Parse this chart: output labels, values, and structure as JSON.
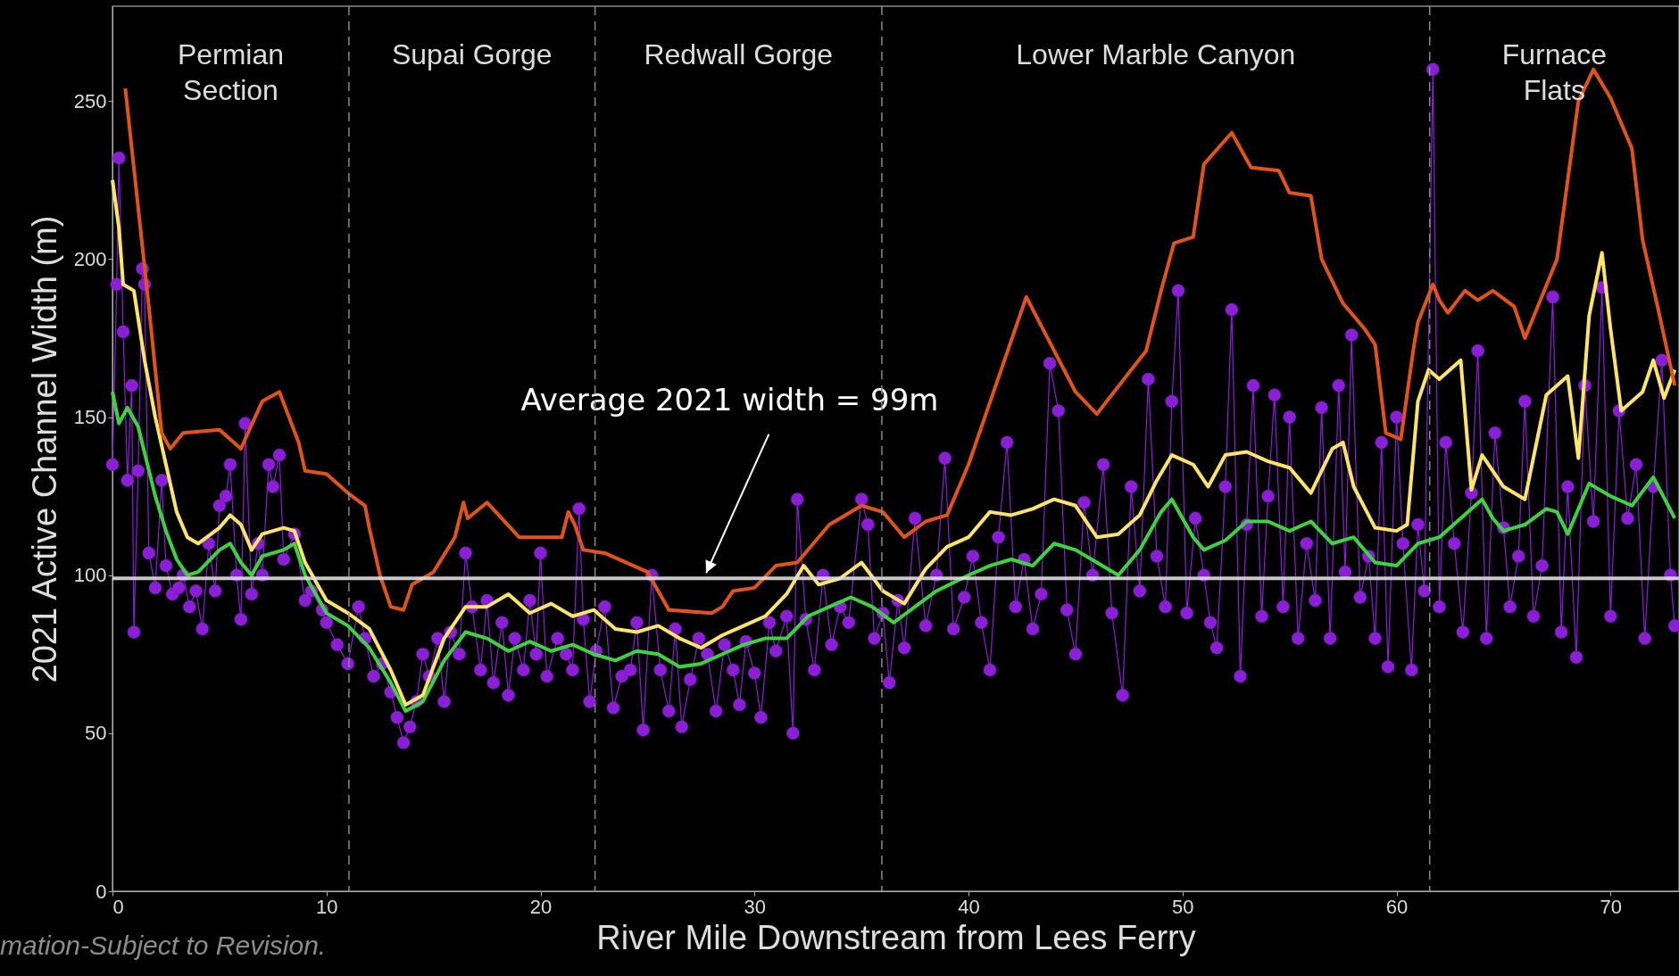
{
  "chart_data": {
    "type": "line",
    "xlabel": "River Mile Downstream from Lees Ferry",
    "ylabel": "2021 Active Channel Width (m)",
    "xlim": [
      0,
      73.2
    ],
    "ylim": [
      0,
      280
    ],
    "xticks": [
      0,
      10,
      20,
      30,
      40,
      50,
      60,
      70
    ],
    "yticks": [
      0,
      50,
      100,
      150,
      200,
      250
    ],
    "grid": false,
    "series": [
      {
        "marker": "circle",
        "color": "#8a1fd6",
        "x": [
          0,
          0.2,
          0.3,
          0.5,
          0.7,
          0.9,
          1.0,
          1.2,
          1.4,
          1.5,
          1.7,
          2.0,
          2.3,
          2.5,
          2.8,
          3.1,
          3.3,
          3.6,
          3.9,
          4.2,
          4.5,
          4.8,
          5.0,
          5.3,
          5.5,
          5.8,
          6.0,
          6.2,
          6.5,
          6.8,
          7.0,
          7.3,
          7.5,
          7.8,
          8.0,
          8.5,
          9.0,
          9.3,
          9.8,
          10.0,
          10.5,
          11.0,
          11.5,
          11.8,
          12.2,
          12.6,
          13.0,
          13.3,
          13.6,
          13.9,
          14.2,
          14.5,
          14.8,
          15.2,
          15.5,
          15.8,
          16.2,
          16.5,
          16.8,
          17.2,
          17.5,
          17.8,
          18.2,
          18.5,
          18.8,
          19.2,
          19.5,
          19.8,
          20.0,
          20.3,
          20.8,
          21.2,
          21.5,
          21.8,
          22.0,
          22.3,
          22.6,
          23.0,
          23.4,
          23.8,
          24.2,
          24.5,
          24.8,
          25.2,
          25.6,
          26.0,
          26.3,
          26.6,
          27.0,
          27.4,
          27.8,
          28.2,
          28.6,
          29.0,
          29.3,
          29.6,
          30.0,
          30.3,
          30.7,
          31.0,
          31.5,
          31.8,
          32.0,
          32.4,
          32.8,
          33.2,
          33.6,
          34.0,
          34.4,
          35.0,
          35.3,
          35.6,
          36.0,
          36.3,
          36.7,
          37.0,
          37.5,
          38.0,
          38.5,
          38.9,
          39.3,
          39.8,
          40.2,
          40.6,
          41.0,
          41.4,
          41.8,
          42.2,
          42.6,
          43.0,
          43.4,
          43.8,
          44.2,
          44.6,
          45.0,
          45.4,
          45.8,
          46.3,
          46.7,
          47.2,
          47.6,
          48.0,
          48.4,
          48.8,
          49.2,
          49.5,
          49.8,
          50.2,
          50.6,
          51.0,
          51.3,
          51.6,
          52.0,
          52.3,
          52.7,
          53.0,
          53.3,
          53.7,
          54.0,
          54.3,
          54.7,
          55.0,
          55.4,
          55.8,
          56.2,
          56.5,
          56.9,
          57.3,
          57.6,
          57.9,
          58.3,
          58.7,
          59.0,
          59.3,
          59.6,
          60.0,
          60.3,
          60.7,
          61.0,
          61.3,
          61.7,
          62.0,
          62.3,
          62.7,
          63.1,
          63.5,
          63.8,
          64.2,
          64.6,
          65.0,
          65.3,
          65.7,
          66.0,
          66.4,
          66.8,
          67.3,
          67.7,
          68.0,
          68.4,
          68.8,
          69.2,
          69.6,
          70.0,
          70.4,
          70.8,
          71.2,
          71.6,
          72.0,
          72.4,
          72.8,
          73.0
        ],
        "values": [
          135,
          192,
          232,
          177,
          130,
          160,
          82,
          133,
          197,
          192,
          107,
          96,
          130,
          103,
          94,
          96,
          100,
          90,
          95,
          83,
          110,
          95,
          122,
          125,
          135,
          100,
          86,
          148,
          94,
          110,
          100,
          135,
          128,
          138,
          105,
          113,
          92,
          95,
          89,
          85,
          78,
          72,
          90,
          80,
          68,
          72,
          63,
          55,
          47,
          52,
          60,
          75,
          68,
          80,
          60,
          82,
          75,
          107,
          90,
          70,
          92,
          66,
          85,
          62,
          80,
          70,
          92,
          75,
          107,
          68,
          80,
          75,
          70,
          121,
          86,
          60,
          76,
          90,
          58,
          68,
          70,
          85,
          51,
          100,
          70,
          57,
          83,
          52,
          67,
          80,
          75,
          57,
          78,
          70,
          59,
          79,
          69,
          55,
          85,
          76,
          87,
          50,
          124,
          86,
          70,
          100,
          78,
          90,
          85,
          124,
          116,
          80,
          88,
          66,
          92,
          77,
          118,
          84,
          100,
          137,
          83,
          93,
          106,
          85,
          70,
          112,
          142,
          90,
          105,
          83,
          94,
          167,
          152,
          89,
          75,
          123,
          100,
          135,
          88,
          62,
          128,
          95,
          162,
          106,
          90,
          155,
          190,
          88,
          118,
          100,
          85,
          77,
          128,
          184,
          68,
          116,
          160,
          87,
          125,
          157,
          90,
          150,
          80,
          110,
          92,
          153,
          80,
          160,
          101,
          176,
          93,
          106,
          80,
          142,
          71,
          150,
          110,
          70,
          116,
          95,
          260,
          90,
          142,
          110,
          82,
          126,
          171,
          80,
          145,
          115,
          90,
          106,
          155,
          87,
          103,
          188,
          82,
          128,
          74,
          160,
          117,
          191,
          87,
          152,
          118,
          135,
          80,
          128,
          168,
          100,
          84
        ]
      },
      {
        "color": "#3fd23f",
        "x": [
          0,
          0.3,
          0.7,
          1.2,
          2,
          2.5,
          3,
          3.5,
          4,
          5,
          5.5,
          6,
          6.5,
          7,
          8,
          8.5,
          9,
          10,
          11,
          12,
          13,
          13.7,
          14.5,
          15.5,
          16.5,
          17.5,
          18.5,
          19.5,
          20.5,
          21.5,
          22.5,
          23.5,
          24.5,
          25.5,
          26.5,
          27.5,
          28.5,
          29.5,
          30.5,
          31.5,
          32.5,
          33.5,
          34.5,
          35.5,
          36.5,
          37.5,
          38.5,
          40,
          41,
          42,
          43,
          44,
          45,
          46,
          47,
          48,
          49,
          49.5,
          50.5,
          51,
          52,
          53,
          54,
          55,
          56,
          57,
          58,
          59,
          60,
          61,
          62,
          63,
          64,
          64.5,
          65,
          66,
          67,
          67.5,
          68,
          69,
          70,
          71,
          72,
          73
        ],
        "values": [
          158,
          148,
          153,
          147,
          125,
          114,
          105,
          100,
          101,
          108,
          110,
          104,
          100,
          106,
          108,
          110,
          100,
          88,
          84,
          77,
          66,
          57,
          60,
          73,
          82,
          80,
          76,
          79,
          76,
          78,
          75,
          73,
          76,
          75,
          71,
          72,
          75,
          78,
          80,
          80,
          87,
          90,
          93,
          90,
          85,
          90,
          95,
          100,
          103,
          105,
          103,
          110,
          108,
          104,
          100,
          108,
          120,
          124,
          112,
          108,
          111,
          117,
          117,
          114,
          117,
          110,
          112,
          104,
          103,
          110,
          112,
          118,
          124,
          118,
          114,
          116,
          121,
          120,
          113,
          129,
          125,
          122,
          131,
          118
        ]
      },
      {
        "color": "#ffe46a",
        "x": [
          0,
          0.3,
          0.5,
          1,
          1.5,
          2,
          2.5,
          3,
          3.5,
          4,
          5,
          5.5,
          6,
          6.5,
          7,
          8,
          8.5,
          9,
          10,
          11,
          12,
          13,
          13.7,
          14.5,
          15.5,
          16.5,
          17.5,
          18.5,
          19.5,
          20.5,
          21.5,
          22.5,
          23.5,
          24.5,
          25.5,
          26.5,
          27.5,
          28.5,
          29.5,
          30.5,
          31.5,
          32.3,
          33,
          34,
          35,
          36,
          37,
          38,
          39,
          40,
          41,
          42,
          43,
          44,
          45,
          46,
          47,
          48,
          48.8,
          49.5,
          50.5,
          51.2,
          52,
          53,
          54,
          55,
          56,
          57,
          57.5,
          58,
          59,
          60,
          60.5,
          61,
          61.5,
          62,
          63,
          63.5,
          64,
          65,
          66,
          67,
          68,
          68.5,
          69,
          69.6,
          70,
          70.5,
          71.5,
          72,
          72.5,
          73
        ],
        "values": [
          225,
          210,
          192,
          190,
          168,
          150,
          135,
          120,
          112,
          110,
          115,
          119,
          116,
          108,
          113,
          115,
          114,
          104,
          92,
          88,
          83,
          70,
          59,
          62,
          80,
          90,
          90,
          94,
          88,
          91,
          87,
          89,
          83,
          82,
          84,
          80,
          77,
          81,
          84,
          87,
          94,
          103,
          97,
          99,
          104,
          95,
          91,
          102,
          109,
          112,
          120,
          119,
          121,
          124,
          122,
          112,
          113,
          119,
          130,
          138,
          135,
          128,
          138,
          139,
          136,
          134,
          126,
          140,
          142,
          128,
          115,
          114,
          116,
          155,
          165,
          162,
          168,
          127,
          138,
          128,
          124,
          157,
          163,
          137,
          182,
          202,
          178,
          152,
          158,
          168,
          156,
          165
        ]
      },
      {
        "color": "#e0541a",
        "x": [
          0.6,
          1.7,
          2.3,
          2.7,
          3.3,
          5,
          6,
          7,
          7.8,
          8.7,
          9,
          10,
          11,
          11.8,
          12,
          12.5,
          13,
          13.6,
          14,
          15,
          16,
          16.4,
          16.6,
          17.5,
          19,
          21,
          21.3,
          21.6,
          22,
          23,
          25,
          26,
          28,
          28.5,
          29,
          30,
          31,
          32,
          33.5,
          34,
          35,
          36,
          37,
          38,
          39,
          40,
          42.7,
          45,
          46,
          48.3,
          49,
          49.6,
          50.5,
          51,
          52.3,
          53.2,
          54.5,
          55,
          56,
          56.5,
          57.5,
          58.5,
          59,
          59.5,
          60.2,
          60.8,
          61,
          61.7,
          62,
          62.4,
          63.2,
          63.8,
          64.5,
          65.5,
          66,
          67.5,
          68.5,
          69.2,
          70,
          71,
          71.5,
          72.2,
          73
        ],
        "values": [
          254,
          185,
          145,
          140,
          145,
          146,
          140,
          155,
          158,
          142,
          133,
          132,
          126,
          122,
          115,
          100,
          90,
          89,
          97,
          101,
          112,
          123,
          118,
          123,
          112,
          112,
          120,
          116,
          108,
          107,
          101,
          89,
          88,
          90,
          95,
          96,
          103,
          104,
          116,
          118,
          122,
          120,
          112,
          117,
          119,
          135,
          188,
          158,
          151,
          171,
          190,
          205,
          207,
          230,
          240,
          229,
          228,
          221,
          220,
          200,
          186,
          178,
          173,
          145,
          143,
          172,
          180,
          192,
          187,
          183,
          190,
          187,
          190,
          185,
          175,
          200,
          250,
          260,
          251,
          235,
          206,
          185,
          160
        ]
      }
    ],
    "ref_lines": [
      {
        "axis": "y",
        "value": 99,
        "color": "#dddddd",
        "line_style": "solid",
        "label": "Average 2021 width = 99m"
      },
      {
        "axis": "x",
        "value": 11.05,
        "color": "#8a8a8a",
        "line_style": "dashed"
      },
      {
        "axis": "x",
        "value": 22.55,
        "color": "#8a8a8a",
        "line_style": "dashed"
      },
      {
        "axis": "x",
        "value": 35.95,
        "color": "#8a8a8a",
        "line_style": "dashed"
      },
      {
        "axis": "x",
        "value": 61.55,
        "color": "#8a8a8a",
        "line_style": "dashed"
      }
    ],
    "annotations": [
      "Permian\nSection",
      "Supai Gorge",
      "Redwall Gorge",
      "Lower Marble Canyon",
      "Furnace\nFlats",
      "mation-Subject to Revision."
    ]
  }
}
